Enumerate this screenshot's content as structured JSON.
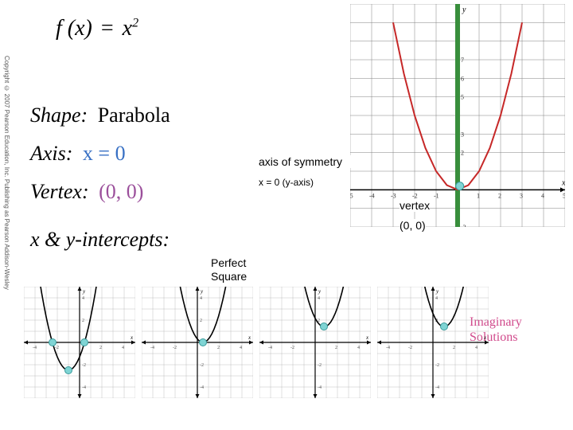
{
  "copyright": "Copyright © 2007 Pearson Education, Inc.    Publishing as Pearson Addison-Wesley",
  "equation": {
    "lhs": "f (x)",
    "eq": "=",
    "rhs_var": "x",
    "rhs_exp": "2"
  },
  "lines": {
    "shape": {
      "label": "Shape:",
      "value": "Parabola"
    },
    "axis": {
      "label": "Axis:",
      "value": "x = 0"
    },
    "vertex": {
      "label": "Vertex:",
      "value": "(0, 0)"
    },
    "intercepts": {
      "label": "x & y-intercepts:"
    }
  },
  "annotations": {
    "axis_sym": "axis of symmetry",
    "axis_eq": "x = 0 (y-axis)",
    "vertex": "vertex",
    "vertex_pt": "(0, 0)",
    "perfect1": "Perfect",
    "perfect2": "Square",
    "imag1": "Imaginary",
    "imag2": "Solutions"
  },
  "main_chart": {
    "type": "scatter-line",
    "xlim": [
      -5,
      5
    ],
    "ylim": [
      -2,
      10
    ],
    "xtick": [
      -5,
      -4,
      -3,
      -2,
      -1,
      1,
      2,
      3,
      4,
      5
    ],
    "ytick": [
      -2,
      2,
      3,
      5,
      6,
      7
    ],
    "axis_label_x": "x",
    "axis_label_y": "y",
    "grid_color": "#808080",
    "axis_color": "#000000",
    "parabola_color": "#c62828",
    "parabola_width": 2,
    "symmetry_line_color": "#388e3c",
    "symmetry_line_width": 6,
    "parabola_pts": [
      [
        -3,
        9
      ],
      [
        -2.5,
        6.25
      ],
      [
        -2,
        4
      ],
      [
        -1.5,
        2.25
      ],
      [
        -1,
        1
      ],
      [
        -0.5,
        0.25
      ],
      [
        0,
        0
      ],
      [
        0.5,
        0.25
      ],
      [
        1,
        1
      ],
      [
        1.5,
        2.25
      ],
      [
        2,
        4
      ],
      [
        2.5,
        6.25
      ],
      [
        3,
        9
      ]
    ],
    "dot_color": "#7fd4d4",
    "dot_border": "#3a9b9b",
    "vertex_dot": [
      0.1,
      0.2
    ]
  },
  "small_charts": [
    {
      "type": "parabola",
      "xlim": [
        -5,
        5
      ],
      "ylim": [
        -5,
        5
      ],
      "grid_color": "#b0b0b0",
      "parabola_color": "#000000",
      "vertex": [
        -1,
        -2.5
      ],
      "a": 1.2,
      "dots": [
        [
          -2.4,
          0
        ],
        [
          0.4,
          0
        ],
        [
          -1,
          -2.5
        ]
      ]
    },
    {
      "type": "parabola",
      "xlim": [
        -5,
        5
      ],
      "ylim": [
        -5,
        5
      ],
      "grid_color": "#b0b0b0",
      "parabola_color": "#000000",
      "vertex": [
        0.5,
        0
      ],
      "a": 1.2,
      "dots": [
        [
          0.5,
          0
        ]
      ]
    },
    {
      "type": "parabola",
      "xlim": [
        -5,
        5
      ],
      "ylim": [
        -5,
        5
      ],
      "grid_color": "#b0b0b0",
      "parabola_color": "#000000",
      "vertex": [
        0.8,
        1.4
      ],
      "a": 1.2,
      "dots": [
        [
          0.8,
          1.4
        ]
      ]
    },
    {
      "type": "parabola",
      "xlim": [
        -5,
        5
      ],
      "ylim": [
        -5,
        5
      ],
      "grid_color": "#b0b0b0",
      "parabola_color": "#000000",
      "vertex": [
        1,
        1.4
      ],
      "a": 1.2,
      "dots": [
        [
          1,
          1.4
        ]
      ]
    }
  ]
}
